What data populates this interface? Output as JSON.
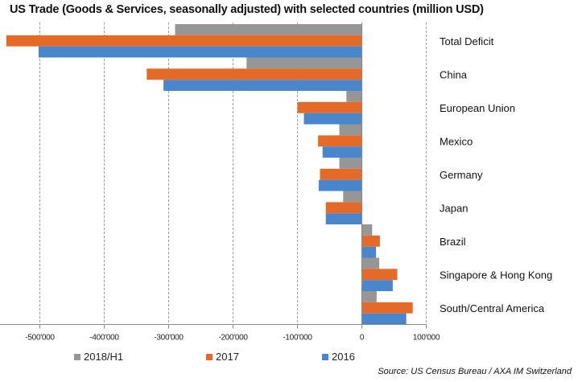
{
  "chart_data": {
    "type": "bar",
    "orientation": "horizontal",
    "title": "US Trade (Goods & Services, seasonally adjusted) with selected countries (million USD)",
    "xlabel": "",
    "ylabel": "",
    "xlim": [
      -560000,
      100000
    ],
    "x_ticks": [
      -500000,
      -400000,
      -300000,
      -200000,
      -100000,
      0,
      100000
    ],
    "x_tick_labels": [
      "-500'000",
      "-400'000",
      "-300'000",
      "-200'000",
      "-100'000",
      "0",
      "100'000"
    ],
    "grid": "vertical dashed",
    "legend_position": "bottom",
    "categories": [
      "Total Deficit",
      "China",
      "European Union",
      "Mexico",
      "Germany",
      "Japan",
      "Brazil",
      "Singapore & Hong Kong",
      "South/Central America"
    ],
    "series": [
      {
        "name": "2018/H1",
        "color": "#969696",
        "values": [
          -290000,
          -179000,
          -24000,
          -35000,
          -35000,
          -29000,
          16000,
          27000,
          23000
        ]
      },
      {
        "name": "2017",
        "color": "#E56A27",
        "values": [
          -552000,
          -334000,
          -100000,
          -68000,
          -65000,
          -56000,
          28000,
          55000,
          79000
        ]
      },
      {
        "name": "2016",
        "color": "#4A86CB",
        "values": [
          -502000,
          -308000,
          -90000,
          -61000,
          -67000,
          -56000,
          22000,
          48000,
          69000
        ]
      }
    ],
    "source": "Source:  US Census Bureau / AXA IM Switzerland"
  }
}
